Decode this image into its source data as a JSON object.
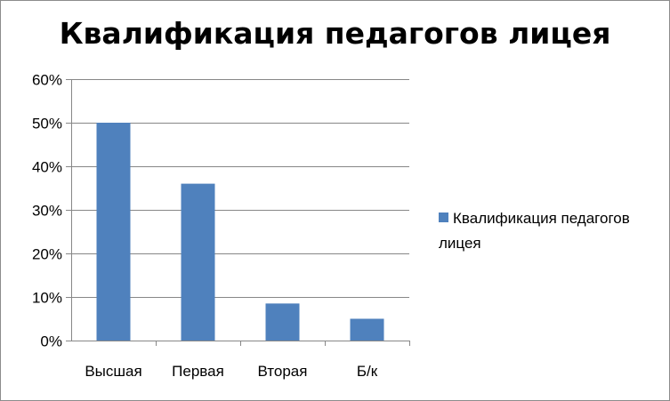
{
  "chart_data": {
    "type": "bar",
    "title": "Квалификация педагогов лицея",
    "categories": [
      "Высшая",
      "Первая",
      "Вторая",
      "Б/к"
    ],
    "series": [
      {
        "name": "Квалификация педагогов лицея",
        "values": [
          50,
          36,
          8.5,
          5
        ],
        "color": "#4f81bd"
      }
    ],
    "ylim": [
      0,
      60
    ],
    "yticks": [
      "0%",
      "10%",
      "20%",
      "30%",
      "40%",
      "50%",
      "60%"
    ],
    "ytick_values": [
      0,
      10,
      20,
      30,
      40,
      50,
      60
    ],
    "grid": true,
    "legend_position": "right",
    "xlabel": "",
    "ylabel": ""
  }
}
